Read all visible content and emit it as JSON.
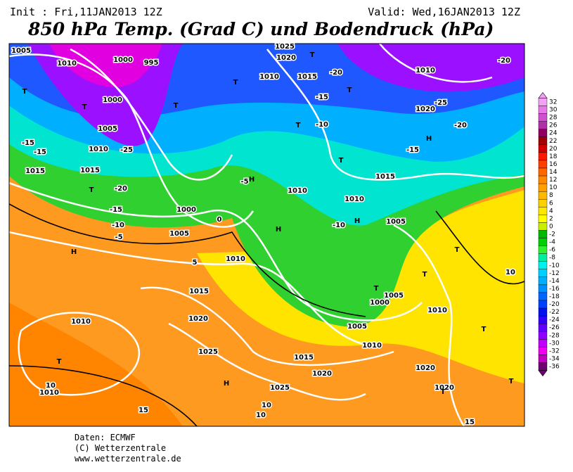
{
  "header": {
    "init": "Init : Fri,11JAN2013 12Z",
    "valid": "Valid: Wed,16JAN2013 12Z",
    "title": "850 hPa Temp. (Grad C) und Bodendruck (hPa)"
  },
  "map_labels": [
    "1005",
    "1010",
    "1000",
    "995",
    "1000",
    "1005",
    "1010",
    "1015",
    "1015",
    "1000",
    "1005",
    "1010",
    "1015",
    "1020",
    "1025",
    "1010",
    "1010",
    "1015",
    "1020",
    "1025",
    "1010",
    "1005",
    "1000",
    "1005",
    "1010",
    "1020",
    "1020",
    "1015",
    "1010",
    "1010",
    "1005",
    "1015",
    "1020",
    "1025",
    "1010",
    "1020",
    "1010",
    "T",
    "T",
    "T",
    "H",
    "T",
    "H",
    "T",
    "T",
    "T",
    "T",
    "H",
    "T",
    "H",
    "H",
    "T",
    "T",
    "T",
    "T",
    "T",
    "T",
    "H",
    "T",
    "-20",
    "-15",
    "-10",
    "-25",
    "-20",
    "-15",
    "-10",
    "-5",
    "-15",
    "-15",
    "-5",
    "-10",
    "5",
    "0",
    "-15",
    "-20",
    "-25",
    "-20",
    "10",
    "10",
    "10",
    "15",
    "15",
    "10"
  ],
  "colorbar": {
    "ticks": [
      32,
      30,
      28,
      26,
      24,
      22,
      20,
      18,
      16,
      14,
      12,
      10,
      8,
      6,
      4,
      2,
      0,
      -2,
      -4,
      -6,
      -8,
      -10,
      -12,
      -14,
      -16,
      -18,
      -20,
      -22,
      -24,
      -26,
      -28,
      -30,
      -32,
      -34,
      -36
    ],
    "colors": [
      "#f4a0f4",
      "#e878e8",
      "#d050d0",
      "#b030a8",
      "#900060",
      "#a00000",
      "#d00000",
      "#ff1800",
      "#ff4000",
      "#ff6800",
      "#ff8800",
      "#ffa000",
      "#ffb800",
      "#ffd000",
      "#ffe800",
      "#ffff00",
      "#c8f000",
      "#00b800",
      "#00d000",
      "#30f030",
      "#00f0a0",
      "#00f0f0",
      "#00d0ff",
      "#00b0ff",
      "#0090ff",
      "#0068ff",
      "#0040ff",
      "#0010f0",
      "#3000ff",
      "#6000ff",
      "#9000ff",
      "#c000ff",
      "#f000f0",
      "#c000c0",
      "#700070"
    ]
  },
  "footer": [
    "Daten: ECMWF",
    "(C) Wetterzentrale",
    "www.wetterzentrale.de"
  ]
}
